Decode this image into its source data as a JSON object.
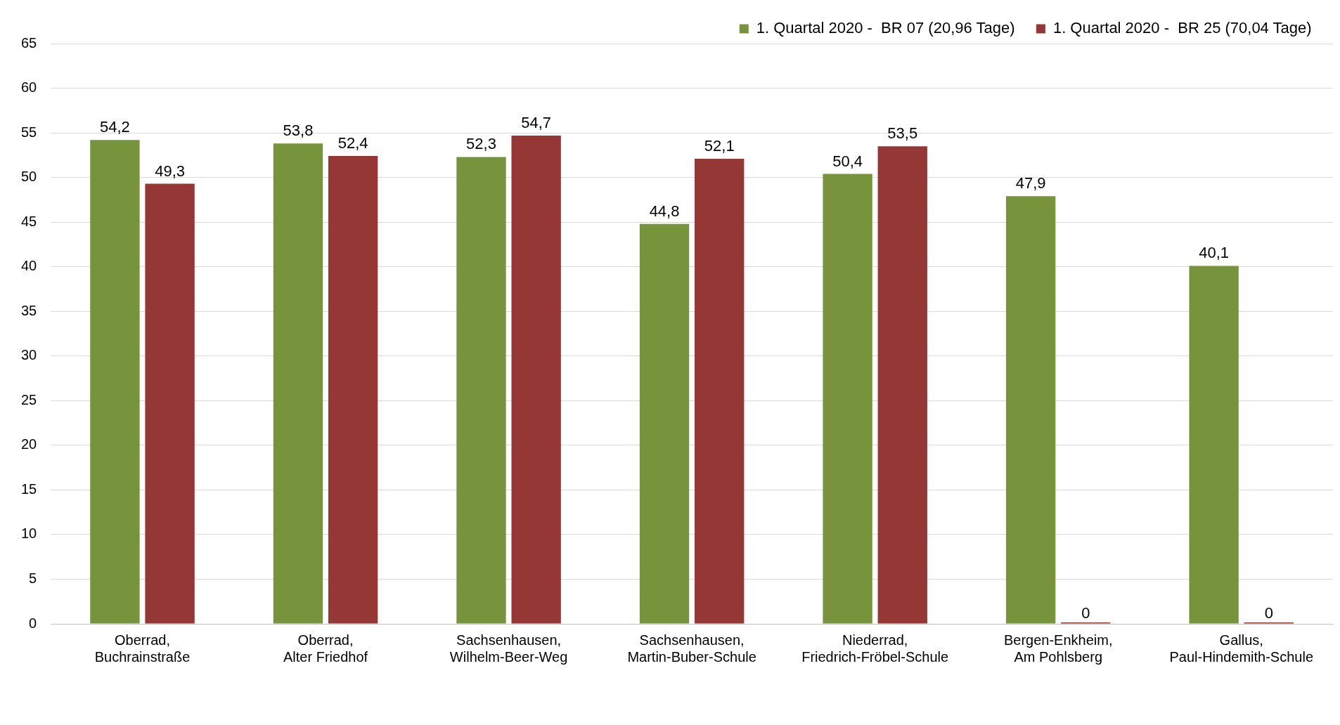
{
  "chart_data": {
    "type": "bar",
    "categories": [
      "Oberrad,\nBuchrainstraße",
      "Oberrad,\nAlter Friedhof",
      "Sachsenhausen,\nWilhelm-Beer-Weg",
      "Sachsenhausen,\nMartin-Buber-Schule",
      "Niederrad,\nFriedrich-Fröbel-Schule",
      "Bergen-Enkheim,\nAm Pohlsberg",
      "Gallus,\nPaul-Hindemith-Schule"
    ],
    "series": [
      {
        "name": "1. Quartal 2020 -  BR 07 (20,96 Tage)",
        "color": "#77933c",
        "values": [
          54.2,
          53.8,
          52.3,
          44.8,
          50.4,
          47.9,
          40.1
        ],
        "value_labels": [
          "54,2",
          "53,8",
          "52,3",
          "44,8",
          "50,4",
          "47,9",
          "40,1"
        ]
      },
      {
        "name": "1. Quartal 2020 -  BR 25 (70,04 Tage)",
        "color": "#953735",
        "values": [
          49.3,
          52.4,
          54.7,
          52.1,
          53.5,
          0,
          0
        ],
        "value_labels": [
          "49,3",
          "52,4",
          "54,7",
          "52,1",
          "53,5",
          "0",
          "0"
        ]
      }
    ],
    "ylim": [
      0,
      65
    ],
    "yticks": [
      0,
      5,
      10,
      15,
      20,
      25,
      30,
      35,
      40,
      45,
      50,
      55,
      60,
      65
    ],
    "grid": "y",
    "legend": "top right"
  }
}
